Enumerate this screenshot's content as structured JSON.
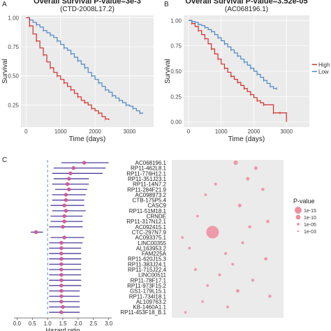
{
  "panels": {
    "a": "A",
    "b": "B",
    "c": "C"
  },
  "chart_data": [
    {
      "type": "line",
      "panel": "A",
      "title": "Overall Survival P-value=3e-3",
      "subtitle": "(CTD-2008L17.2)",
      "xlabel": "Time (days)",
      "ylabel": "Survival",
      "xlim": [
        -150,
        3700
      ],
      "ylim": [
        0.06,
        1.02
      ],
      "xticks": [
        0,
        1000,
        2000,
        3000
      ],
      "yticks": [
        0.25,
        0.5,
        0.75,
        1.0
      ],
      "ytick_labels": [
        "0.25",
        "0.50",
        "0.75",
        "1.00"
      ],
      "grid": true,
      "background": "#ebebeb",
      "series": [
        {
          "name": "",
          "color": "#4a86c8",
          "x": [
            0,
            100,
            200,
            300,
            400,
            500,
            600,
            700,
            800,
            900,
            1000,
            1100,
            1200,
            1300,
            1400,
            1500,
            1600,
            1700,
            1800,
            1900,
            2000,
            2100,
            2200,
            2300,
            2400,
            2500,
            2600,
            2700,
            2800,
            2900,
            3000,
            3100,
            3200,
            3300,
            3400
          ],
          "y": [
            1.0,
            0.98,
            0.96,
            0.94,
            0.92,
            0.89,
            0.87,
            0.85,
            0.83,
            0.8,
            0.77,
            0.74,
            0.72,
            0.69,
            0.66,
            0.63,
            0.6,
            0.57,
            0.53,
            0.5,
            0.47,
            0.44,
            0.41,
            0.38,
            0.36,
            0.33,
            0.31,
            0.29,
            0.27,
            0.25,
            0.24,
            0.22,
            0.2,
            0.18,
            0.18
          ]
        },
        {
          "name": "",
          "color": "#d62b2b",
          "x": [
            0,
            100,
            200,
            300,
            400,
            500,
            600,
            700,
            800,
            900,
            1000,
            1100,
            1200,
            1300,
            1400,
            1500,
            1600,
            1700,
            1800,
            1900,
            2000,
            2100,
            2200,
            2300,
            2400
          ],
          "y": [
            1.0,
            0.93,
            0.86,
            0.8,
            0.74,
            0.68,
            0.62,
            0.57,
            0.53,
            0.5,
            0.47,
            0.44,
            0.41,
            0.38,
            0.35,
            0.32,
            0.29,
            0.27,
            0.25,
            0.22,
            0.2,
            0.18,
            0.15,
            0.13,
            0.12
          ]
        }
      ]
    },
    {
      "type": "line",
      "panel": "B",
      "title": "Overall Survival P-value=3.52e-05",
      "subtitle": "(AC068196.1)",
      "xlabel": "Time (days)",
      "ylabel": "Survival",
      "xlim": [
        -150,
        3700
      ],
      "ylim": [
        -0.05,
        1.05
      ],
      "xticks": [
        0,
        1000,
        2000,
        3000
      ],
      "yticks": [
        0.0,
        0.25,
        0.5,
        0.75,
        1.0
      ],
      "ytick_labels": [
        "0.00",
        "0.25",
        "0.50",
        "0.75",
        "1.00"
      ],
      "grid": true,
      "background": "#ebebeb",
      "series": [
        {
          "name": "High",
          "color": "#d62b2b",
          "x": [
            0,
            100,
            200,
            300,
            400,
            500,
            600,
            700,
            800,
            900,
            1000,
            1100,
            1200,
            1300,
            1400,
            1500,
            1600,
            1700,
            1800,
            1900,
            2000,
            2100,
            2200,
            2300,
            2400,
            2600,
            2700,
            2800,
            3000
          ],
          "y": [
            1.0,
            0.97,
            0.94,
            0.9,
            0.86,
            0.82,
            0.77,
            0.72,
            0.67,
            0.62,
            0.57,
            0.53,
            0.49,
            0.45,
            0.42,
            0.39,
            0.36,
            0.33,
            0.3,
            0.27,
            0.24,
            0.21,
            0.19,
            0.17,
            0.17,
            0.09,
            0.09,
            0.09,
            0.0
          ]
        },
        {
          "name": "Low",
          "color": "#4a86c8",
          "x": [
            0,
            100,
            200,
            300,
            400,
            500,
            600,
            700,
            800,
            900,
            1000,
            1100,
            1200,
            1300,
            1400,
            1500,
            1600,
            1700,
            1800,
            1900,
            2000,
            2100,
            2200,
            2300,
            2400,
            2500,
            2600,
            2700
          ],
          "y": [
            1.0,
            0.99,
            0.98,
            0.96,
            0.95,
            0.93,
            0.91,
            0.89,
            0.86,
            0.83,
            0.8,
            0.77,
            0.74,
            0.71,
            0.68,
            0.65,
            0.62,
            0.59,
            0.56,
            0.53,
            0.5,
            0.47,
            0.44,
            0.41,
            0.38,
            0.35,
            0.33,
            0.33
          ]
        }
      ],
      "legend": {
        "placement": "right",
        "entries": [
          "High",
          "Low"
        ]
      }
    },
    {
      "type": "scatter",
      "panel": "C",
      "subtype": "forest",
      "xlabel": "Hazard ratio",
      "xlim": [
        -0.1,
        3.1
      ],
      "xticks": [
        0.0,
        0.5,
        1.0,
        1.5,
        2.0,
        2.5,
        3.0
      ],
      "xtick_labels": [
        "0.0",
        "0.5",
        "1.0",
        "1.5",
        "2.0",
        "2.5",
        "3.0"
      ],
      "reference_line": 1.0,
      "line_color": "#4b3f9e",
      "point_color": "#e05a9a",
      "categories": [
        "AC068196.1",
        "RP11-462L8.1",
        "RP11-776H12.1",
        "RP11-351J23.1",
        "RP11-14N7.2",
        "RP11-284F21.9",
        "AC098973.2",
        "CTB-175P5.4",
        "CASC9",
        "RP11-51M18.1",
        "CRNDE",
        "RP11-317N12.1",
        "AC092415.1",
        "CTC-297N7.9",
        "AC093375.1",
        "LINC00355",
        "AL163953.2",
        "FAM225A",
        "RP11-620J15.3",
        "RP11-383J24.1",
        "RP11-715J22.4",
        "LINC00511",
        "RP11-78F17.1",
        "RP11-973F15.2",
        "GS1-179L15.1",
        "RP11-734I18.1",
        "AL109763.2",
        "KB-1460A1.1",
        "RP11-453F18_B.1"
      ],
      "hr": [
        2.2,
        1.85,
        1.75,
        1.7,
        1.65,
        1.7,
        1.6,
        1.6,
        1.55,
        1.6,
        1.55,
        1.55,
        1.5,
        0.62,
        1.55,
        1.45,
        1.45,
        1.45,
        1.45,
        1.45,
        1.45,
        1.45,
        1.45,
        1.45,
        1.45,
        1.45,
        1.45,
        1.5,
        1.45
      ],
      "lower": [
        1.45,
        1.2,
        1.15,
        1.2,
        1.15,
        1.25,
        1.15,
        1.15,
        1.1,
        1.15,
        1.1,
        1.1,
        1.05,
        0.45,
        1.1,
        1.05,
        1.05,
        1.05,
        1.05,
        1.05,
        1.05,
        1.05,
        1.05,
        1.05,
        1.05,
        1.05,
        1.05,
        1.05,
        1.05
      ],
      "upper": [
        3.0,
        2.9,
        2.8,
        2.35,
        2.35,
        2.3,
        2.25,
        2.2,
        2.2,
        2.25,
        2.15,
        2.15,
        2.15,
        0.85,
        2.2,
        2.15,
        2.1,
        2.1,
        2.1,
        2.1,
        2.1,
        2.1,
        2.1,
        2.1,
        2.05,
        2.05,
        2.05,
        2.05,
        2.05
      ]
    },
    {
      "type": "scatter",
      "panel": "C",
      "subtype": "bubble",
      "background": "#ebebeb",
      "point_color": "#f08c9c",
      "points": [
        {
          "row": 0,
          "pos": 0.58,
          "neglog10p": 4.5
        },
        {
          "row": 1,
          "pos": 0.78,
          "neglog10p": 3.5
        },
        {
          "row": 3,
          "pos": 0.7,
          "neglog10p": 3.5
        },
        {
          "row": 4,
          "pos": 0.38,
          "neglog10p": 2.6
        },
        {
          "row": 5,
          "pos": 0.85,
          "neglog10p": 3
        },
        {
          "row": 6,
          "pos": 0.28,
          "neglog10p": 2.4
        },
        {
          "row": 8,
          "pos": 0.62,
          "neglog10p": 3.6
        },
        {
          "row": 10,
          "pos": 0.2,
          "neglog10p": 2.3
        },
        {
          "row": 11,
          "pos": 0.9,
          "neglog10p": 3.2
        },
        {
          "row": 12,
          "pos": 0.72,
          "neglog10p": 2.8
        },
        {
          "row": 13,
          "pos": 0.35,
          "neglog10p": 15
        },
        {
          "row": 14,
          "pos": 0.05,
          "neglog10p": 2.2
        },
        {
          "row": 15,
          "pos": 0.65,
          "neglog10p": 2.6
        },
        {
          "row": 16,
          "pos": 0.12,
          "neglog10p": 2.5
        },
        {
          "row": 17,
          "pos": 0.48,
          "neglog10p": 2.7
        },
        {
          "row": 18,
          "pos": 0.88,
          "neglog10p": 3.3
        },
        {
          "row": 19,
          "pos": 0.55,
          "neglog10p": 2.4
        },
        {
          "row": 20,
          "pos": 0.18,
          "neglog10p": 2.6
        },
        {
          "row": 21,
          "pos": 0.42,
          "neglog10p": 2.5
        },
        {
          "row": 22,
          "pos": 0.75,
          "neglog10p": 2.8
        },
        {
          "row": 23,
          "pos": 0.3,
          "neglog10p": 2.3
        },
        {
          "row": 24,
          "pos": 0.6,
          "neglog10p": 3.5
        },
        {
          "row": 25,
          "pos": 0.92,
          "neglog10p": 2.9
        },
        {
          "row": 26,
          "pos": 0.25,
          "neglog10p": 2.2
        },
        {
          "row": 27,
          "pos": 0.5,
          "neglog10p": 2.4
        },
        {
          "row": 28,
          "pos": 0.08,
          "neglog10p": 2.1
        }
      ],
      "legend": {
        "title": "P-value",
        "placement": "right",
        "entries": [
          {
            "label": "1e-15",
            "neglog10p": 15
          },
          {
            "label": "1e-10",
            "neglog10p": 10
          },
          {
            "label": "1e-05",
            "neglog10p": 5
          },
          {
            "label": "1e-03",
            "neglog10p": 3
          }
        ]
      }
    }
  ]
}
